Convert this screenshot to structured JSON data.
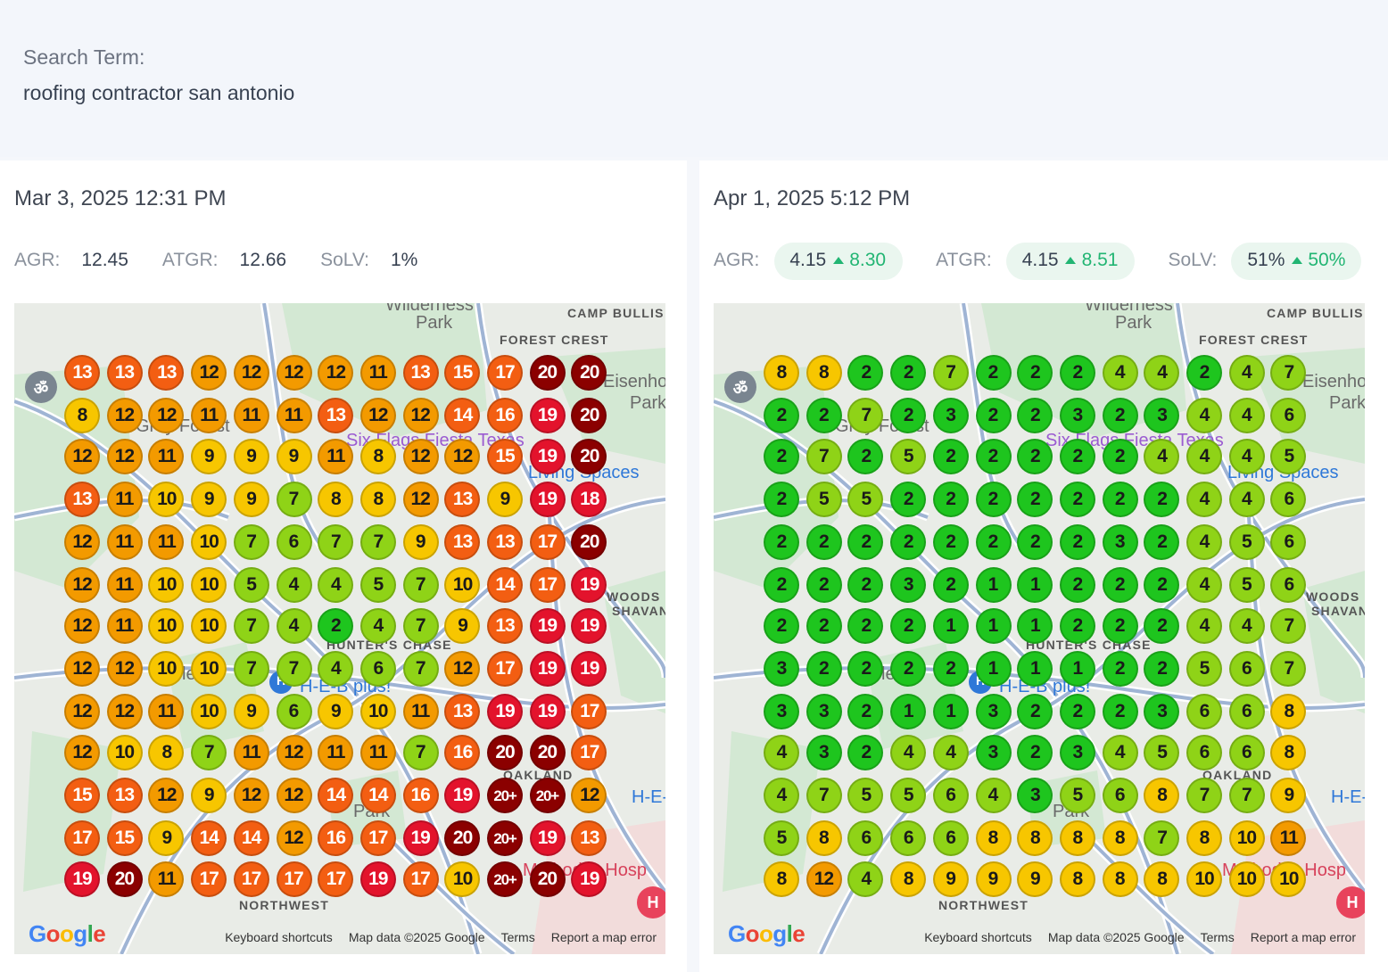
{
  "search": {
    "label": "Search Term:",
    "term": "roofing contractor san antonio"
  },
  "colors": {
    "rank_1_3": "#1ec51e",
    "rank_4_7": "#8fd317",
    "rank_8_10": "#f7c600",
    "rank_11_12": "#f39a00",
    "rank_13_17": "#f35e12",
    "rank_18_19": "#e3132c",
    "rank_20_plus": "#8b0000",
    "metric_delta": "#22b573"
  },
  "map": {
    "labels": {
      "park": "Park",
      "wilderness": "Wilderness",
      "camp_bullis": "CAMP BULLIS",
      "forest_crest": "FOREST CREST",
      "eisenhower": "Eisenho",
      "eisenhower_park": "Park",
      "grey_forest": "Grey Forest",
      "six_flags": "Six Flags Fiesta Texas",
      "living_spaces": "Living Spaces",
      "woods": "WOODS O",
      "shavano": "SHAVAN",
      "hunters_chase": "HUNTER'S CHASE",
      "heb_plus": "H-E-B plus!",
      "oakland": "OAKLAND",
      "heb_right": "H-E-",
      "methodist": "Methodist Hosp",
      "northwest": "NORTHWEST",
      "crag_park": "Park",
      "parman": "le"
    },
    "google": "Google",
    "attribution": {
      "shortcuts": "Keyboard shortcuts",
      "data": "Map data ©2025 Google",
      "terms": "Terms",
      "report": "Report a map error"
    },
    "icons": {
      "temple": "om-icon",
      "hospital": "hospital-icon",
      "store": "map-pin-icon"
    }
  },
  "left": {
    "date": "Mar 3, 2025 12:31 PM",
    "metrics": [
      {
        "label": "AGR:",
        "value": "12.45"
      },
      {
        "label": "ATGR:",
        "value": "12.66"
      },
      {
        "label": "SoLV:",
        "value": "1%"
      }
    ],
    "grid": [
      [
        "13",
        "13",
        "13",
        "12",
        "12",
        "12",
        "12",
        "11",
        "13",
        "15",
        "17",
        "20",
        "20"
      ],
      [
        "8",
        "12",
        "12",
        "11",
        "11",
        "11",
        "13",
        "12",
        "12",
        "14",
        "16",
        "19",
        "20"
      ],
      [
        "12",
        "12",
        "11",
        "9",
        "9",
        "9",
        "11",
        "8",
        "12",
        "12",
        "15",
        "19",
        "20"
      ],
      [
        "13",
        "11",
        "10",
        "9",
        "9",
        "7",
        "8",
        "8",
        "12",
        "13",
        "9",
        "19",
        "18"
      ],
      [
        "12",
        "11",
        "11",
        "10",
        "7",
        "6",
        "7",
        "7",
        "9",
        "13",
        "13",
        "17",
        "20"
      ],
      [
        "12",
        "11",
        "10",
        "10",
        "5",
        "4",
        "4",
        "5",
        "7",
        "10",
        "14",
        "17",
        "19"
      ],
      [
        "12",
        "11",
        "10",
        "10",
        "7",
        "4",
        "2",
        "4",
        "7",
        "9",
        "13",
        "19",
        "19"
      ],
      [
        "12",
        "12",
        "10",
        "10",
        "7",
        "7",
        "4",
        "6",
        "7",
        "12",
        "17",
        "19",
        "19"
      ],
      [
        "12",
        "12",
        "11",
        "10",
        "9",
        "6",
        "9",
        "10",
        "11",
        "13",
        "19",
        "19",
        "17"
      ],
      [
        "12",
        "10",
        "8",
        "7",
        "11",
        "12",
        "11",
        "11",
        "7",
        "16",
        "20",
        "20",
        "17"
      ],
      [
        "15",
        "13",
        "12",
        "9",
        "12",
        "12",
        "14",
        "14",
        "16",
        "19",
        "20+",
        "20+",
        "12"
      ],
      [
        "17",
        "15",
        "9",
        "14",
        "14",
        "12",
        "16",
        "17",
        "19",
        "20",
        "20+",
        "19",
        "13"
      ],
      [
        "19",
        "20",
        "11",
        "17",
        "17",
        "17",
        "17",
        "19",
        "17",
        "10",
        "20+",
        "20",
        "19"
      ]
    ]
  },
  "right": {
    "date": "Apr 1, 2025 5:12 PM",
    "metrics": [
      {
        "label": "AGR:",
        "value": "4.15",
        "delta": "8.30"
      },
      {
        "label": "ATGR:",
        "value": "4.15",
        "delta": "8.51"
      },
      {
        "label": "SoLV:",
        "value": "51%",
        "delta": "50%"
      }
    ],
    "grid": [
      [
        "8",
        "8",
        "2",
        "2",
        "7",
        "2",
        "2",
        "2",
        "4",
        "4",
        "2",
        "4",
        "7"
      ],
      [
        "2",
        "2",
        "7",
        "2",
        "3",
        "2",
        "2",
        "3",
        "2",
        "3",
        "4",
        "4",
        "6"
      ],
      [
        "2",
        "7",
        "2",
        "5",
        "2",
        "2",
        "2",
        "2",
        "2",
        "4",
        "4",
        "4",
        "5"
      ],
      [
        "2",
        "5",
        "5",
        "2",
        "2",
        "2",
        "2",
        "2",
        "2",
        "2",
        "4",
        "4",
        "6"
      ],
      [
        "2",
        "2",
        "2",
        "2",
        "2",
        "2",
        "2",
        "2",
        "3",
        "2",
        "4",
        "5",
        "6"
      ],
      [
        "2",
        "2",
        "2",
        "3",
        "2",
        "1",
        "1",
        "2",
        "2",
        "2",
        "4",
        "5",
        "6"
      ],
      [
        "2",
        "2",
        "2",
        "2",
        "1",
        "1",
        "1",
        "2",
        "2",
        "2",
        "4",
        "4",
        "7"
      ],
      [
        "3",
        "2",
        "2",
        "2",
        "2",
        "1",
        "1",
        "1",
        "2",
        "2",
        "5",
        "6",
        "7"
      ],
      [
        "3",
        "3",
        "2",
        "1",
        "1",
        "3",
        "2",
        "2",
        "2",
        "3",
        "6",
        "6",
        "8"
      ],
      [
        "4",
        "3",
        "2",
        "4",
        "4",
        "3",
        "2",
        "3",
        "4",
        "5",
        "6",
        "6",
        "8"
      ],
      [
        "4",
        "7",
        "5",
        "5",
        "6",
        "4",
        "3",
        "5",
        "6",
        "8",
        "7",
        "7",
        "9"
      ],
      [
        "5",
        "8",
        "6",
        "6",
        "6",
        "8",
        "8",
        "8",
        "8",
        "7",
        "8",
        "10",
        "11"
      ],
      [
        "8",
        "12",
        "4",
        "8",
        "9",
        "9",
        "9",
        "8",
        "8",
        "8",
        "10",
        "10",
        "10"
      ]
    ]
  }
}
